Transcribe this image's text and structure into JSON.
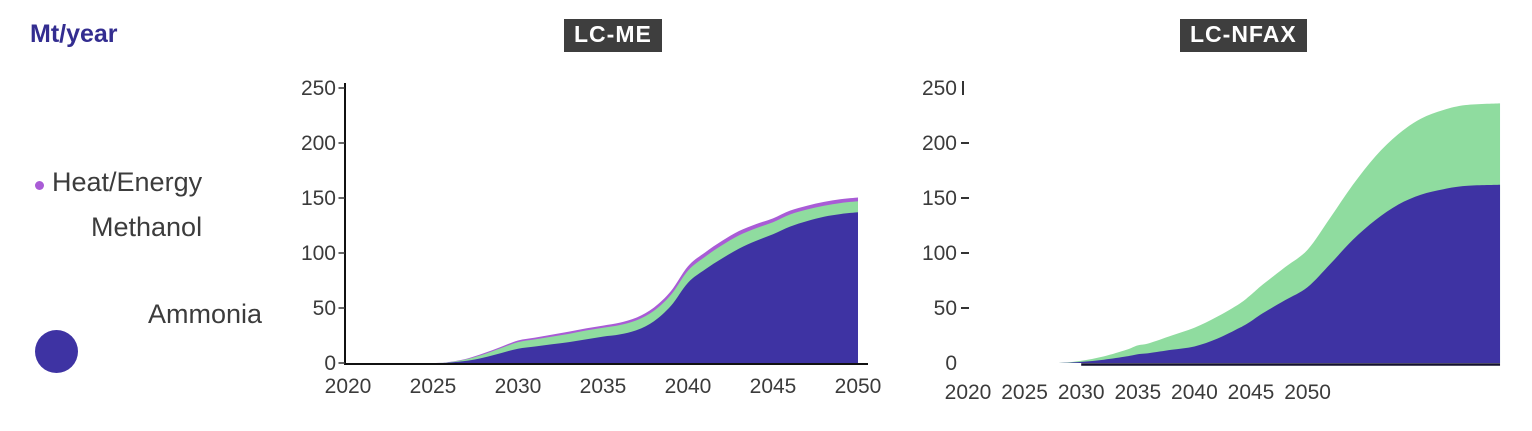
{
  "page": {
    "unit_label": "Mt/year"
  },
  "legend": {
    "items": [
      {
        "label": "Heat/Energy",
        "color": "#a95cd6",
        "marker": "small-dot"
      },
      {
        "label": "Methanol",
        "color": "#8fdc9f",
        "marker": "none"
      },
      {
        "label": "Ammonia",
        "color": "#3e33a3",
        "marker": "large-circle"
      }
    ]
  },
  "chart_data": [
    {
      "id": "lc-me",
      "type": "area",
      "stacked": true,
      "title": "LC-ME",
      "ylabel": "Mt/year",
      "ylim": [
        0,
        250
      ],
      "yticks": [
        250,
        200,
        150,
        100,
        50,
        0
      ],
      "xticks": [
        2020,
        2025,
        2030,
        2035,
        2040,
        2045,
        2050
      ],
      "grid": false,
      "legend_position": "left",
      "x": [
        2020,
        2025,
        2026,
        2027,
        2028,
        2029,
        2030,
        2031,
        2032,
        2033,
        2034,
        2035,
        2036,
        2037,
        2038,
        2039,
        2040,
        2041,
        2042,
        2043,
        2044,
        2045,
        2046,
        2047,
        2048,
        2049,
        2050
      ],
      "series": [
        {
          "name": "Ammonia",
          "color": "#3e33a3",
          "values": [
            0,
            0,
            0.5,
            2,
            5,
            9,
            13,
            15,
            17,
            19,
            21.5,
            24,
            26,
            30,
            38,
            52,
            73,
            85,
            95,
            104,
            111,
            117,
            124,
            129,
            133,
            135.5,
            137
          ]
        },
        {
          "name": "Methanol",
          "color": "#8fdc9f",
          "values": [
            0,
            0,
            0.3,
            1.5,
            3,
            4.5,
            6,
            6.5,
            7,
            7.5,
            8,
            8,
            8.5,
            9,
            9.5,
            10,
            11,
            11.5,
            12,
            12,
            11.5,
            11,
            11,
            10.5,
            10,
            10,
            10
          ]
        },
        {
          "name": "Heat/Energy",
          "color": "#a95cd6",
          "values": [
            0,
            0,
            0.2,
            0.5,
            1,
            1.2,
            1.5,
            1.6,
            1.8,
            2,
            2,
            2,
            2.2,
            2.5,
            3,
            3.5,
            4,
            4,
            4,
            4,
            3.8,
            3.5,
            3.5,
            3.5,
            3.5,
            3.5,
            3.5
          ]
        }
      ]
    },
    {
      "id": "lc-nfax",
      "type": "area",
      "stacked": true,
      "title": "LC-NFAX",
      "ylabel": "Mt/year",
      "ylim": [
        0,
        250
      ],
      "yticks": [
        250,
        200,
        150,
        100,
        50,
        0
      ],
      "xticks": [
        2020,
        2025,
        2030,
        2035,
        2040,
        2045,
        2050
      ],
      "grid": false,
      "note": "area continues past the 2050 tick to the figure edge",
      "x": [
        2020,
        2025,
        2028,
        2030,
        2032,
        2034,
        2035,
        2036,
        2038,
        2040,
        2042,
        2044,
        2045,
        2046,
        2048,
        2050,
        2052,
        2054,
        2056,
        2058,
        2060,
        2062,
        2064,
        2067
      ],
      "series": [
        {
          "name": "Ammonia",
          "color": "#3e33a3",
          "values": [
            0,
            0,
            0,
            1,
            3,
            6,
            8,
            9,
            12,
            15,
            22,
            32,
            38,
            45,
            57,
            69,
            90,
            112,
            130,
            144,
            153,
            158,
            161,
            162
          ]
        },
        {
          "name": "Methanol",
          "color": "#8fdc9f",
          "values": [
            0,
            0,
            0,
            1,
            3,
            6,
            8,
            9,
            13,
            17,
            20,
            22,
            24,
            26,
            30,
            34,
            42,
            50,
            58,
            64,
            69,
            72,
            73.5,
            74
          ]
        }
      ]
    }
  ]
}
